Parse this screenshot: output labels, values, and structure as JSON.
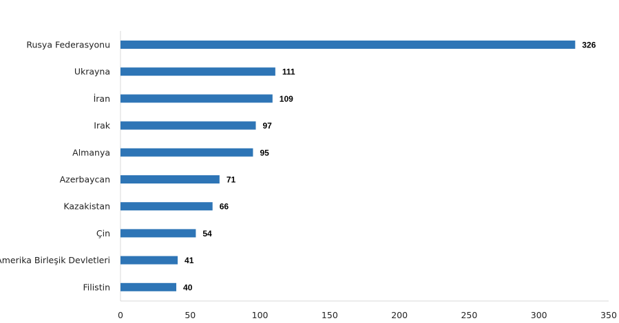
{
  "chart_data": {
    "type": "bar",
    "orientation": "horizontal",
    "title": "",
    "xlabel": "",
    "ylabel": "",
    "categories": [
      "Rusya Federasyonu",
      "Ukrayna",
      "İran",
      "Irak",
      "Almanya",
      "Azerbaycan",
      "Kazakistan",
      "Çin",
      "Amerika Birleşik Devletleri",
      "Filistin"
    ],
    "values": [
      326,
      111,
      109,
      97,
      95,
      71,
      66,
      54,
      41,
      40
    ],
    "xlim": [
      0,
      350
    ],
    "xticks": [
      0,
      50,
      100,
      150,
      200,
      250,
      300,
      350
    ],
    "grid": false,
    "legend": "none",
    "bar_color": "#2e75b6",
    "data_labels": true
  }
}
